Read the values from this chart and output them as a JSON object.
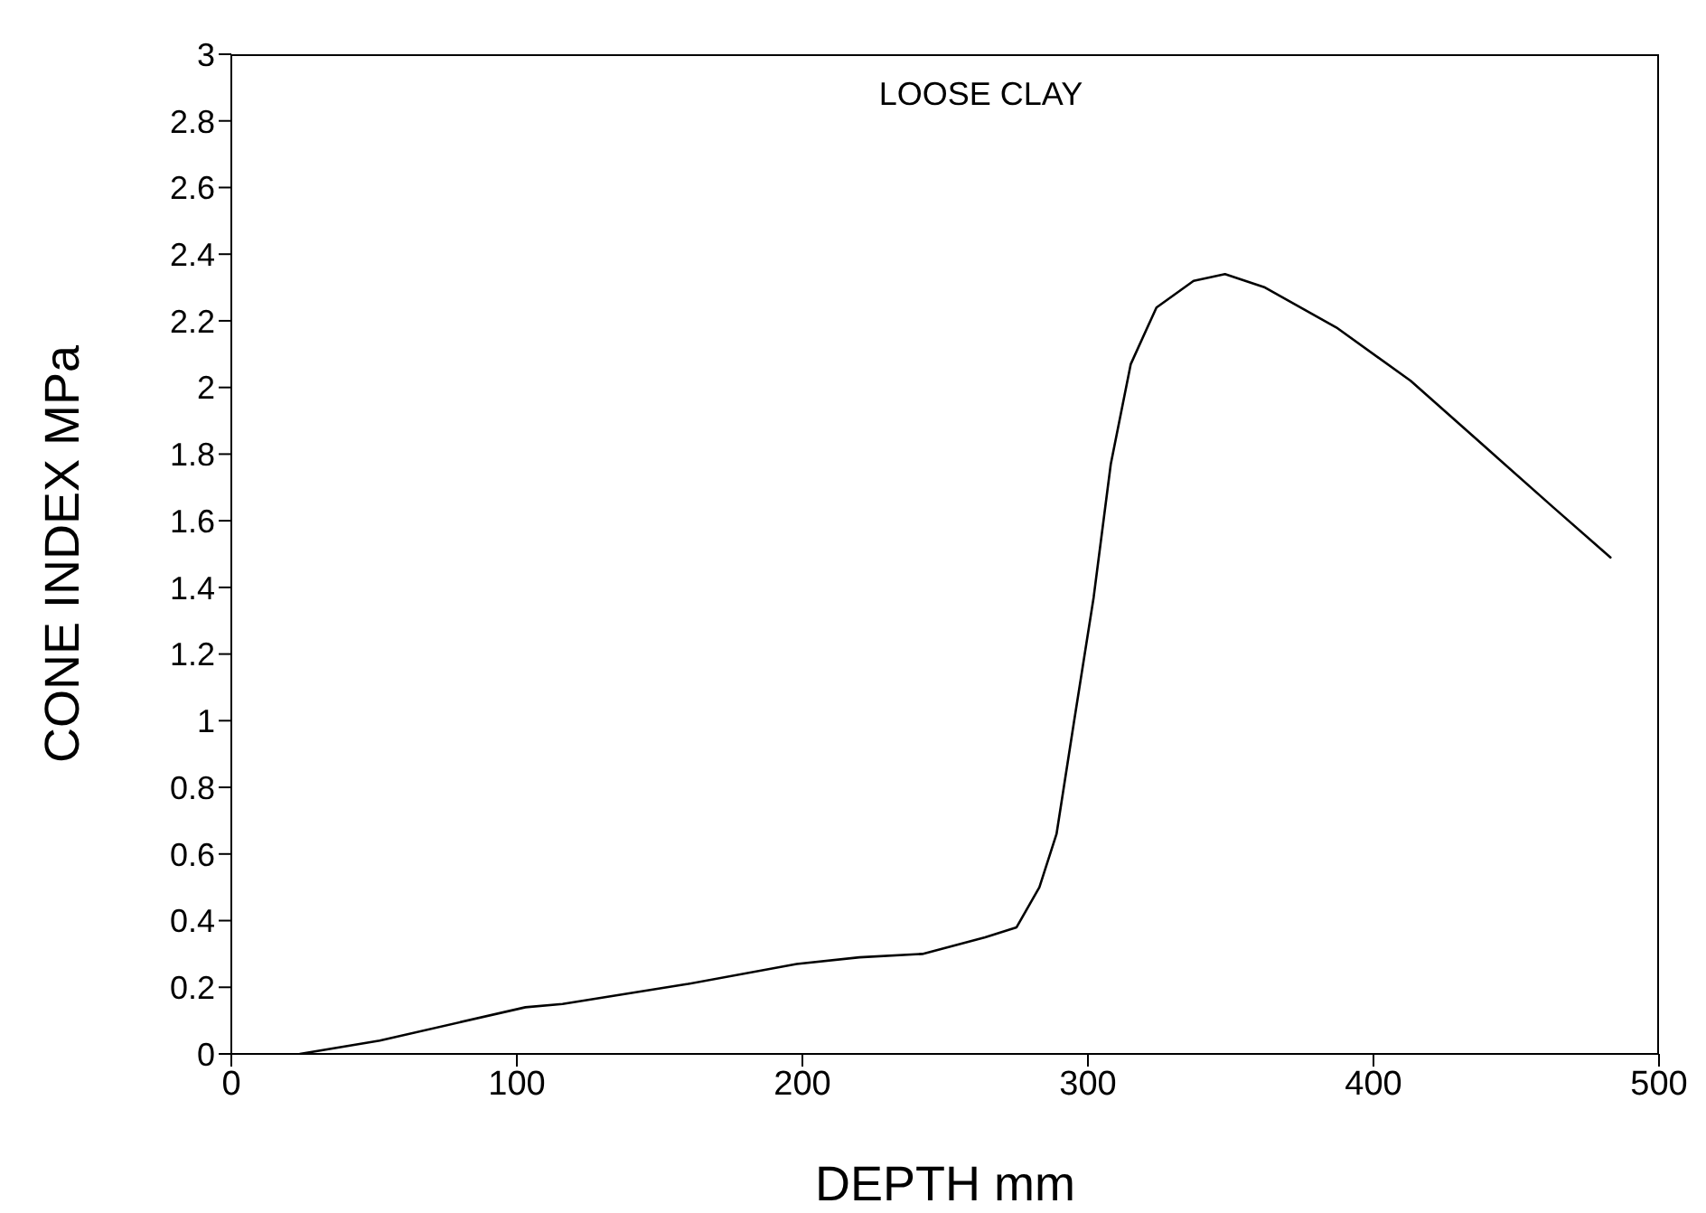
{
  "chart_data": {
    "type": "line",
    "title": "LOOSE CLAY",
    "xlabel": "DEPTH mm",
    "ylabel": "CONE INDEX MPa",
    "xlim": [
      0,
      500
    ],
    "xticks": [
      0,
      100,
      200,
      300,
      400,
      500
    ],
    "ylim": [
      0,
      3
    ],
    "yticks": [
      0,
      0.2,
      0.4,
      0.6,
      0.8,
      1,
      1.2,
      1.4,
      1.6,
      1.8,
      2,
      2.2,
      2.4,
      2.6,
      2.8,
      3
    ],
    "marker": "none",
    "line_style": "solid",
    "series": [
      {
        "color": "#000000",
        "x": [
          24,
          52,
          103,
          116,
          160,
          198,
          220,
          242,
          264,
          275,
          283,
          289,
          295,
          302,
          308,
          315,
          324,
          337,
          348,
          362,
          387,
          413,
          438,
          463,
          483
        ],
        "values": [
          0,
          0.04,
          0.14,
          0.15,
          0.21,
          0.27,
          0.29,
          0.3,
          0.35,
          0.38,
          0.5,
          0.66,
          0.99,
          1.37,
          1.77,
          2.07,
          2.24,
          2.32,
          2.34,
          2.3,
          2.18,
          2.02,
          1.83,
          1.64,
          1.49
        ]
      }
    ]
  }
}
